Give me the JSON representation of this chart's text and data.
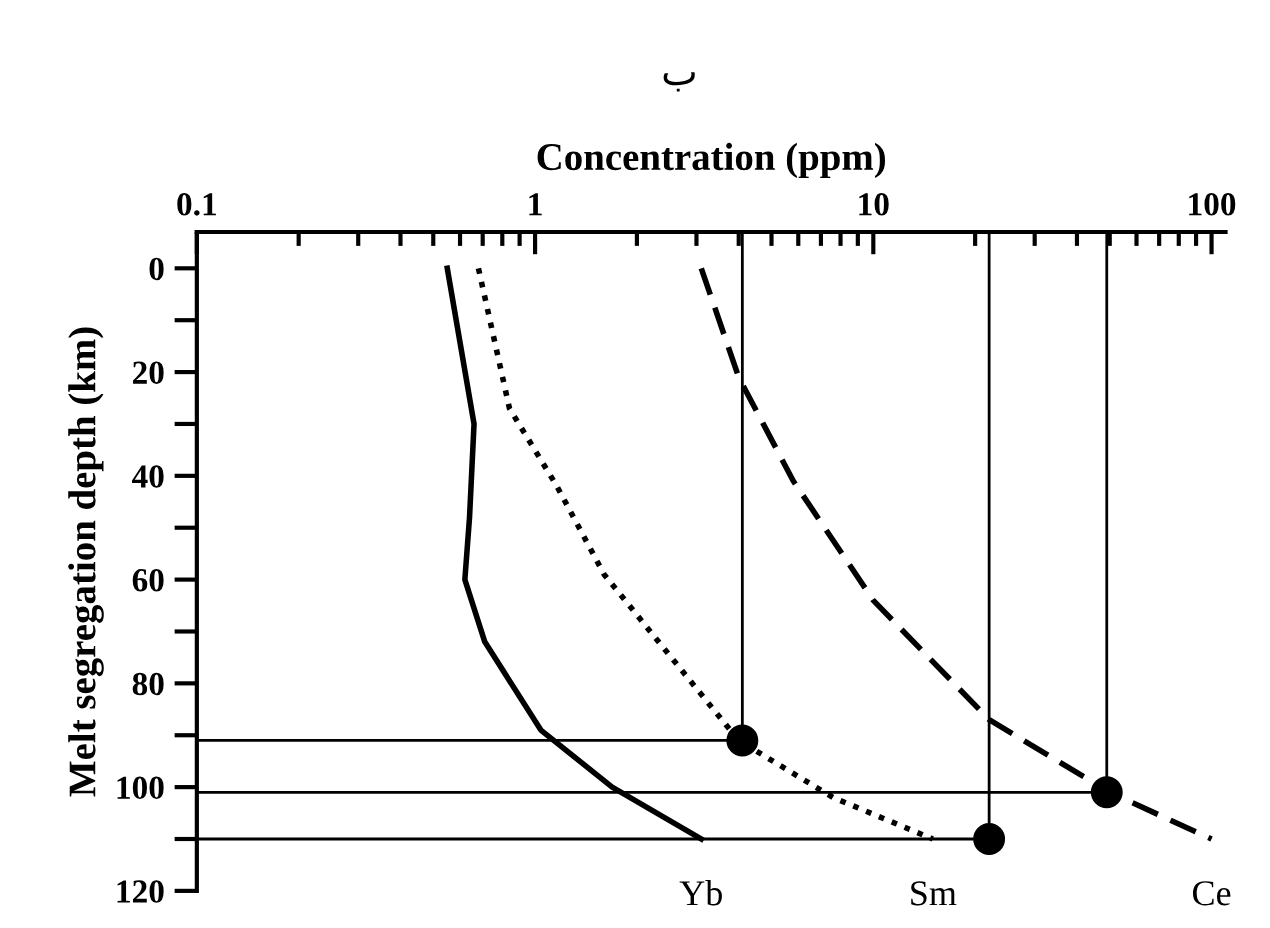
{
  "chart_data": {
    "type": "line",
    "title": "ب",
    "xlabel": "Concentration (ppm)",
    "ylabel": "Melt segregation depth (km)",
    "log": "x",
    "xlim": [
      0.1,
      110
    ],
    "ylim": [
      120,
      -7
    ],
    "xticks": [
      0.1,
      1,
      10,
      100
    ],
    "yticks": [
      0,
      {
        "value": 10,
        "label": null
      },
      20,
      {
        "value": 30,
        "label": null
      },
      40,
      {
        "value": 50,
        "label": null
      },
      60,
      {
        "value": 70,
        "label": null
      },
      80,
      {
        "value": 90,
        "label": null
      },
      100,
      {
        "value": 110,
        "label": null
      },
      120
    ],
    "grid": false,
    "legend": false,
    "series": [
      {
        "line_style": "solid",
        "color": "#000000",
        "x": [
          0.55,
          0.66,
          0.64,
          0.62,
          0.71,
          1.04,
          1.69,
          3.1
        ],
        "values": [
          0,
          30,
          48,
          60,
          72,
          89,
          100,
          110
        ]
      },
      {
        "line_style": "dotted",
        "color": "#000000",
        "x": [
          0.68,
          0.84,
          1.16,
          1.6,
          2.6,
          4.0,
          7.6,
          15
        ],
        "values": [
          0,
          27,
          42,
          59,
          76,
          91,
          102,
          110
        ]
      },
      {
        "line_style": "dashed",
        "color": "#000000",
        "x": [
          3.1,
          4.0,
          5.8,
          10,
          22,
          50,
          100
        ],
        "values": [
          0,
          21,
          41,
          64,
          87,
          101,
          110
        ]
      },
      {
        "line_style": "solid",
        "color": "#000000",
        "x": [
          0.1,
          4.1,
          4.1
        ],
        "values": [
          91,
          91,
          -7
        ]
      },
      {
        "line_style": "solid",
        "color": "#000000",
        "x": [
          0.1,
          49,
          49
        ],
        "values": [
          101,
          101,
          -7
        ]
      },
      {
        "line_style": "solid",
        "color": "#000000",
        "x": [
          0.1,
          22,
          22
        ],
        "values": [
          110,
          110,
          -7
        ]
      },
      {
        "type": "scatter",
        "marker": "circle",
        "color": "#000000",
        "x": [
          4.1,
          49,
          22
        ],
        "values": [
          91,
          101,
          110
        ]
      }
    ],
    "annotations": [
      "Yb",
      "Sm",
      "Ce"
    ]
  }
}
